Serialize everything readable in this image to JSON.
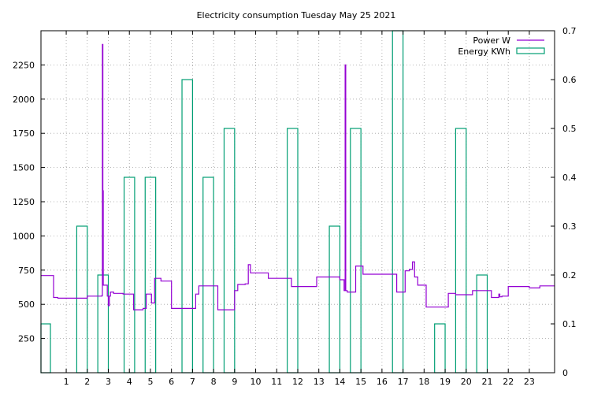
{
  "chart_data": {
    "type": "line",
    "title": "Electricity consumption Tuesday May 25 2021",
    "xlabel": "",
    "ylabel": "",
    "y2label": "",
    "xlim": [
      -0.2,
      24.2
    ],
    "ylim": [
      0,
      2500
    ],
    "y2lim": [
      0,
      0.7
    ],
    "grid": true,
    "legend_position": "top-right",
    "x_ticks": [
      1,
      2,
      3,
      4,
      5,
      6,
      7,
      8,
      9,
      10,
      11,
      12,
      13,
      14,
      15,
      16,
      17,
      18,
      19,
      20,
      21,
      22,
      23
    ],
    "x_tick_labels": [
      "1",
      "2",
      "3",
      "4",
      "5",
      "6",
      "7",
      "8",
      "9",
      "10",
      "11",
      "12",
      "13",
      "14",
      "15",
      "16",
      "17",
      "18",
      "19",
      "20",
      "21",
      "22",
      "23"
    ],
    "y_ticks": [
      250,
      500,
      750,
      1000,
      1250,
      1500,
      1750,
      2000,
      2250
    ],
    "y_tick_labels": [
      "250",
      "500",
      "750",
      "1000",
      "1250",
      "1500",
      "1750",
      "2000",
      "2250"
    ],
    "y2_ticks": [
      0,
      0.1,
      0.2,
      0.3,
      0.4,
      0.5,
      0.6,
      0.7
    ],
    "y2_tick_labels": [
      "0",
      "0.1",
      "0.2",
      "0.3",
      "0.4",
      "0.5",
      "0.6",
      "0.7"
    ],
    "series": [
      {
        "name": "Power W",
        "axis": "left",
        "style": "steps",
        "color": "#9400d3",
        "x": [
          -0.2,
          0.35,
          0.4,
          0.6,
          1.0,
          1.6,
          2.0,
          2.3,
          2.55,
          2.7,
          2.72,
          2.74,
          2.76,
          2.78,
          2.85,
          2.95,
          3.0,
          3.05,
          3.1,
          3.25,
          3.5,
          3.7,
          4.0,
          4.2,
          4.5,
          4.65,
          4.8,
          4.9,
          5.05,
          5.2,
          5.5,
          5.7,
          6.0,
          6.5,
          7.0,
          7.15,
          7.3,
          7.55,
          8.0,
          8.2,
          8.3,
          8.5,
          9.0,
          9.15,
          9.5,
          9.65,
          9.75,
          10.0,
          10.5,
          10.6,
          11.0,
          11.3,
          11.7,
          12.0,
          12.7,
          12.9,
          13.5,
          13.7,
          14.0,
          14.2,
          14.25,
          14.28,
          14.35,
          14.5,
          14.75,
          15.0,
          15.1,
          15.5,
          16.0,
          16.5,
          16.7,
          17.0,
          17.1,
          17.3,
          17.45,
          17.55,
          17.7,
          18.0,
          18.1,
          18.5,
          19.0,
          19.15,
          19.5,
          20.0,
          20.3,
          20.5,
          21.0,
          21.2,
          21.5,
          21.55,
          21.6,
          21.7,
          22.0,
          22.5,
          22.7,
          23.0,
          23.3,
          23.5,
          24.0,
          24.2
        ],
        "y": [
          710,
          710,
          550,
          545,
          545,
          545,
          560,
          560,
          560,
          565,
          2400,
          1330,
          640,
          640,
          640,
          560,
          490,
          560,
          590,
          580,
          580,
          575,
          575,
          460,
          460,
          470,
          575,
          575,
          510,
          690,
          670,
          670,
          470,
          470,
          470,
          575,
          635,
          635,
          635,
          460,
          460,
          460,
          600,
          645,
          650,
          790,
          730,
          730,
          730,
          690,
          690,
          690,
          630,
          630,
          630,
          700,
          700,
          700,
          680,
          600,
          2250,
          600,
          590,
          590,
          780,
          780,
          720,
          720,
          720,
          720,
          590,
          590,
          745,
          755,
          810,
          700,
          640,
          640,
          480,
          480,
          480,
          580,
          570,
          570,
          600,
          600,
          600,
          550,
          550,
          575,
          555,
          560,
          630,
          630,
          630,
          620,
          620,
          635,
          635,
          635
        ]
      },
      {
        "name": "Energy KWh",
        "axis": "right",
        "style": "bars",
        "color": "#009e73",
        "bar_width": 0.5,
        "x": [
          0,
          2,
          3,
          4,
          5,
          7,
          8,
          9,
          12,
          14,
          15,
          17,
          19,
          20,
          21
        ],
        "y": [
          0.1,
          0.3,
          0.2,
          0.4,
          0.4,
          0.6,
          0.4,
          0.5,
          0.5,
          0.3,
          0.5,
          0.7,
          0.1,
          0.5,
          0.2
        ],
        "bar_offsets": [
          0,
          -0.25,
          -0.25,
          0,
          0,
          -0.25,
          -0.25,
          -0.25,
          -0.25,
          -0.25,
          -0.25,
          -0.25,
          -0.25,
          -0.25,
          -0.25
        ]
      }
    ]
  }
}
